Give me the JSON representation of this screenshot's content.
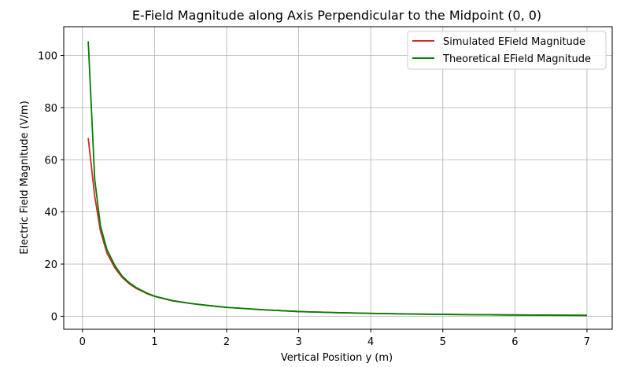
{
  "chart_data": {
    "type": "line",
    "title": "E-Field Magnitude along Axis Perpendicular to the Midpoint (0, 0)",
    "xlabel": "Vertical Position y (m)",
    "ylabel": "Electric Field Magnitude (V/m)",
    "xlim": [
      -0.26,
      7.35
    ],
    "ylim": [
      -5,
      111
    ],
    "xticks": [
      0,
      1,
      2,
      3,
      4,
      5,
      6,
      7
    ],
    "yticks": [
      0,
      20,
      40,
      60,
      80,
      100
    ],
    "grid": true,
    "legend_position": "top-right",
    "colors": {
      "simulated": "#d62728",
      "theoretical": "#008000",
      "grid": "#b0b0b0"
    },
    "series": [
      {
        "name": "Simulated EField Magnitude",
        "color": "#d62728",
        "x": [
          0.08,
          0.17,
          0.25,
          0.34,
          0.45,
          0.55,
          0.65,
          0.75,
          0.9,
          1.0,
          1.25,
          1.5,
          1.75,
          2.0,
          2.5,
          3.0,
          3.5,
          4.0,
          4.5,
          5.0,
          5.5,
          6.0,
          6.5,
          7.0
        ],
        "y": [
          68.3,
          46.0,
          32.6,
          24.2,
          18.5,
          14.9,
          12.4,
          10.6,
          8.6,
          7.6,
          5.9,
          4.9,
          4.1,
          3.4,
          2.5,
          1.8,
          1.4,
          1.1,
          0.88,
          0.7,
          0.58,
          0.48,
          0.4,
          0.33
        ]
      },
      {
        "name": "Theoretical EField Magnitude",
        "color": "#008000",
        "x": [
          0.08,
          0.17,
          0.25,
          0.34,
          0.45,
          0.55,
          0.65,
          0.75,
          0.9,
          1.0,
          1.25,
          1.5,
          1.75,
          2.0,
          2.5,
          3.0,
          3.5,
          4.0,
          4.5,
          5.0,
          5.5,
          6.0,
          6.5,
          7.0
        ],
        "y": [
          105.4,
          52.5,
          34.5,
          25.5,
          19.4,
          15.4,
          12.8,
          10.9,
          8.8,
          7.7,
          6.0,
          4.9,
          4.1,
          3.4,
          2.5,
          1.8,
          1.4,
          1.1,
          0.88,
          0.7,
          0.58,
          0.48,
          0.4,
          0.33
        ]
      }
    ]
  }
}
